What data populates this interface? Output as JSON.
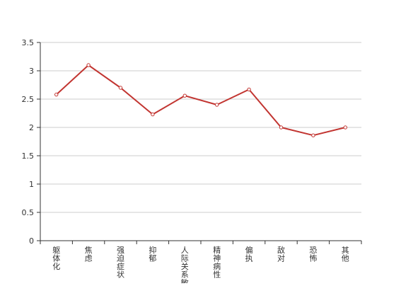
{
  "chart_data": {
    "type": "line",
    "title": "",
    "xlabel": "",
    "ylabel": "",
    "categories": [
      "躯体化",
      "焦虑",
      "强迫症状",
      "抑郁",
      "人际关系敏感",
      "精神病性",
      "偏执",
      "敌对",
      "恐怖",
      "其他"
    ],
    "series": [
      {
        "values": [
          2.58,
          3.1,
          2.7,
          2.23,
          2.56,
          2.4,
          2.67,
          2.0,
          1.86,
          2.0
        ],
        "color": "#c23531"
      }
    ],
    "ylim": [
      0,
      3.5
    ],
    "yticks": [
      "0",
      "0.5",
      "1",
      "1.5",
      "2",
      "2.5",
      "3",
      "3.5"
    ],
    "grid": true,
    "legend": "none"
  }
}
